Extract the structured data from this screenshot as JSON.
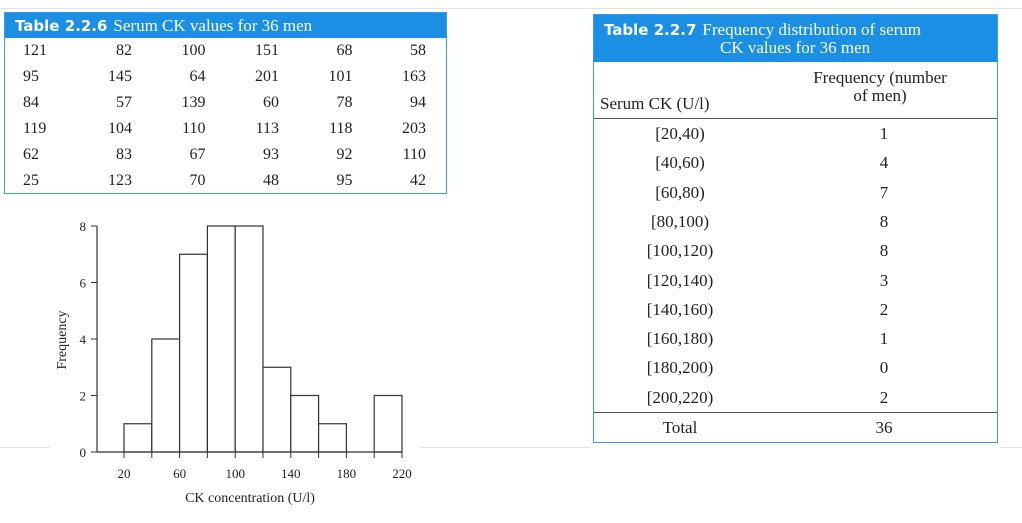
{
  "table1": {
    "label": "Table 2.2.6",
    "title": "Serum CK values for 36 men",
    "rows": [
      [
        "121",
        "82",
        "100",
        "151",
        "68",
        "58"
      ],
      [
        "95",
        "145",
        "64",
        "201",
        "101",
        "163"
      ],
      [
        "84",
        "57",
        "139",
        "60",
        "78",
        "94"
      ],
      [
        "119",
        "104",
        "110",
        "113",
        "118",
        "203"
      ],
      [
        "62",
        "83",
        "67",
        "93",
        "92",
        "110"
      ],
      [
        "25",
        "123",
        "70",
        "48",
        "95",
        "42"
      ]
    ]
  },
  "table2": {
    "label": "Table 2.2.7",
    "title_line1": "Frequency distribution of serum",
    "title_line2": "CK values for 36 men",
    "col1": "Serum CK (U/l)",
    "col2_line1": "Frequency (number",
    "col2_line2": "of men)",
    "rows": [
      {
        "range": "[20,40)",
        "freq": "1"
      },
      {
        "range": "[40,60)",
        "freq": "4"
      },
      {
        "range": "[60,80)",
        "freq": "7"
      },
      {
        "range": "[80,100)",
        "freq": "8"
      },
      {
        "range": "[100,120)",
        "freq": "8"
      },
      {
        "range": "[120,140)",
        "freq": "3"
      },
      {
        "range": "[140,160)",
        "freq": "2"
      },
      {
        "range": "[160,180)",
        "freq": "1"
      },
      {
        "range": "[180,200)",
        "freq": "0"
      },
      {
        "range": "[200,220)",
        "freq": "2"
      }
    ],
    "total_label": "Total",
    "total_value": "36"
  },
  "chart_data": {
    "type": "bar",
    "subtype": "histogram",
    "bin_edges": [
      20,
      40,
      60,
      80,
      100,
      120,
      140,
      160,
      180,
      200,
      220
    ],
    "values": [
      1,
      4,
      7,
      8,
      8,
      3,
      2,
      1,
      0,
      2
    ],
    "xlabel": "CK concentration (U/l)",
    "ylabel": "Frequency",
    "xticks": [
      "20",
      "60",
      "100",
      "140",
      "180",
      "220"
    ],
    "yticks": [
      "0",
      "2",
      "4",
      "6",
      "8"
    ],
    "xlim": [
      0,
      220
    ],
    "ylim": [
      0,
      8
    ],
    "grid": false
  }
}
